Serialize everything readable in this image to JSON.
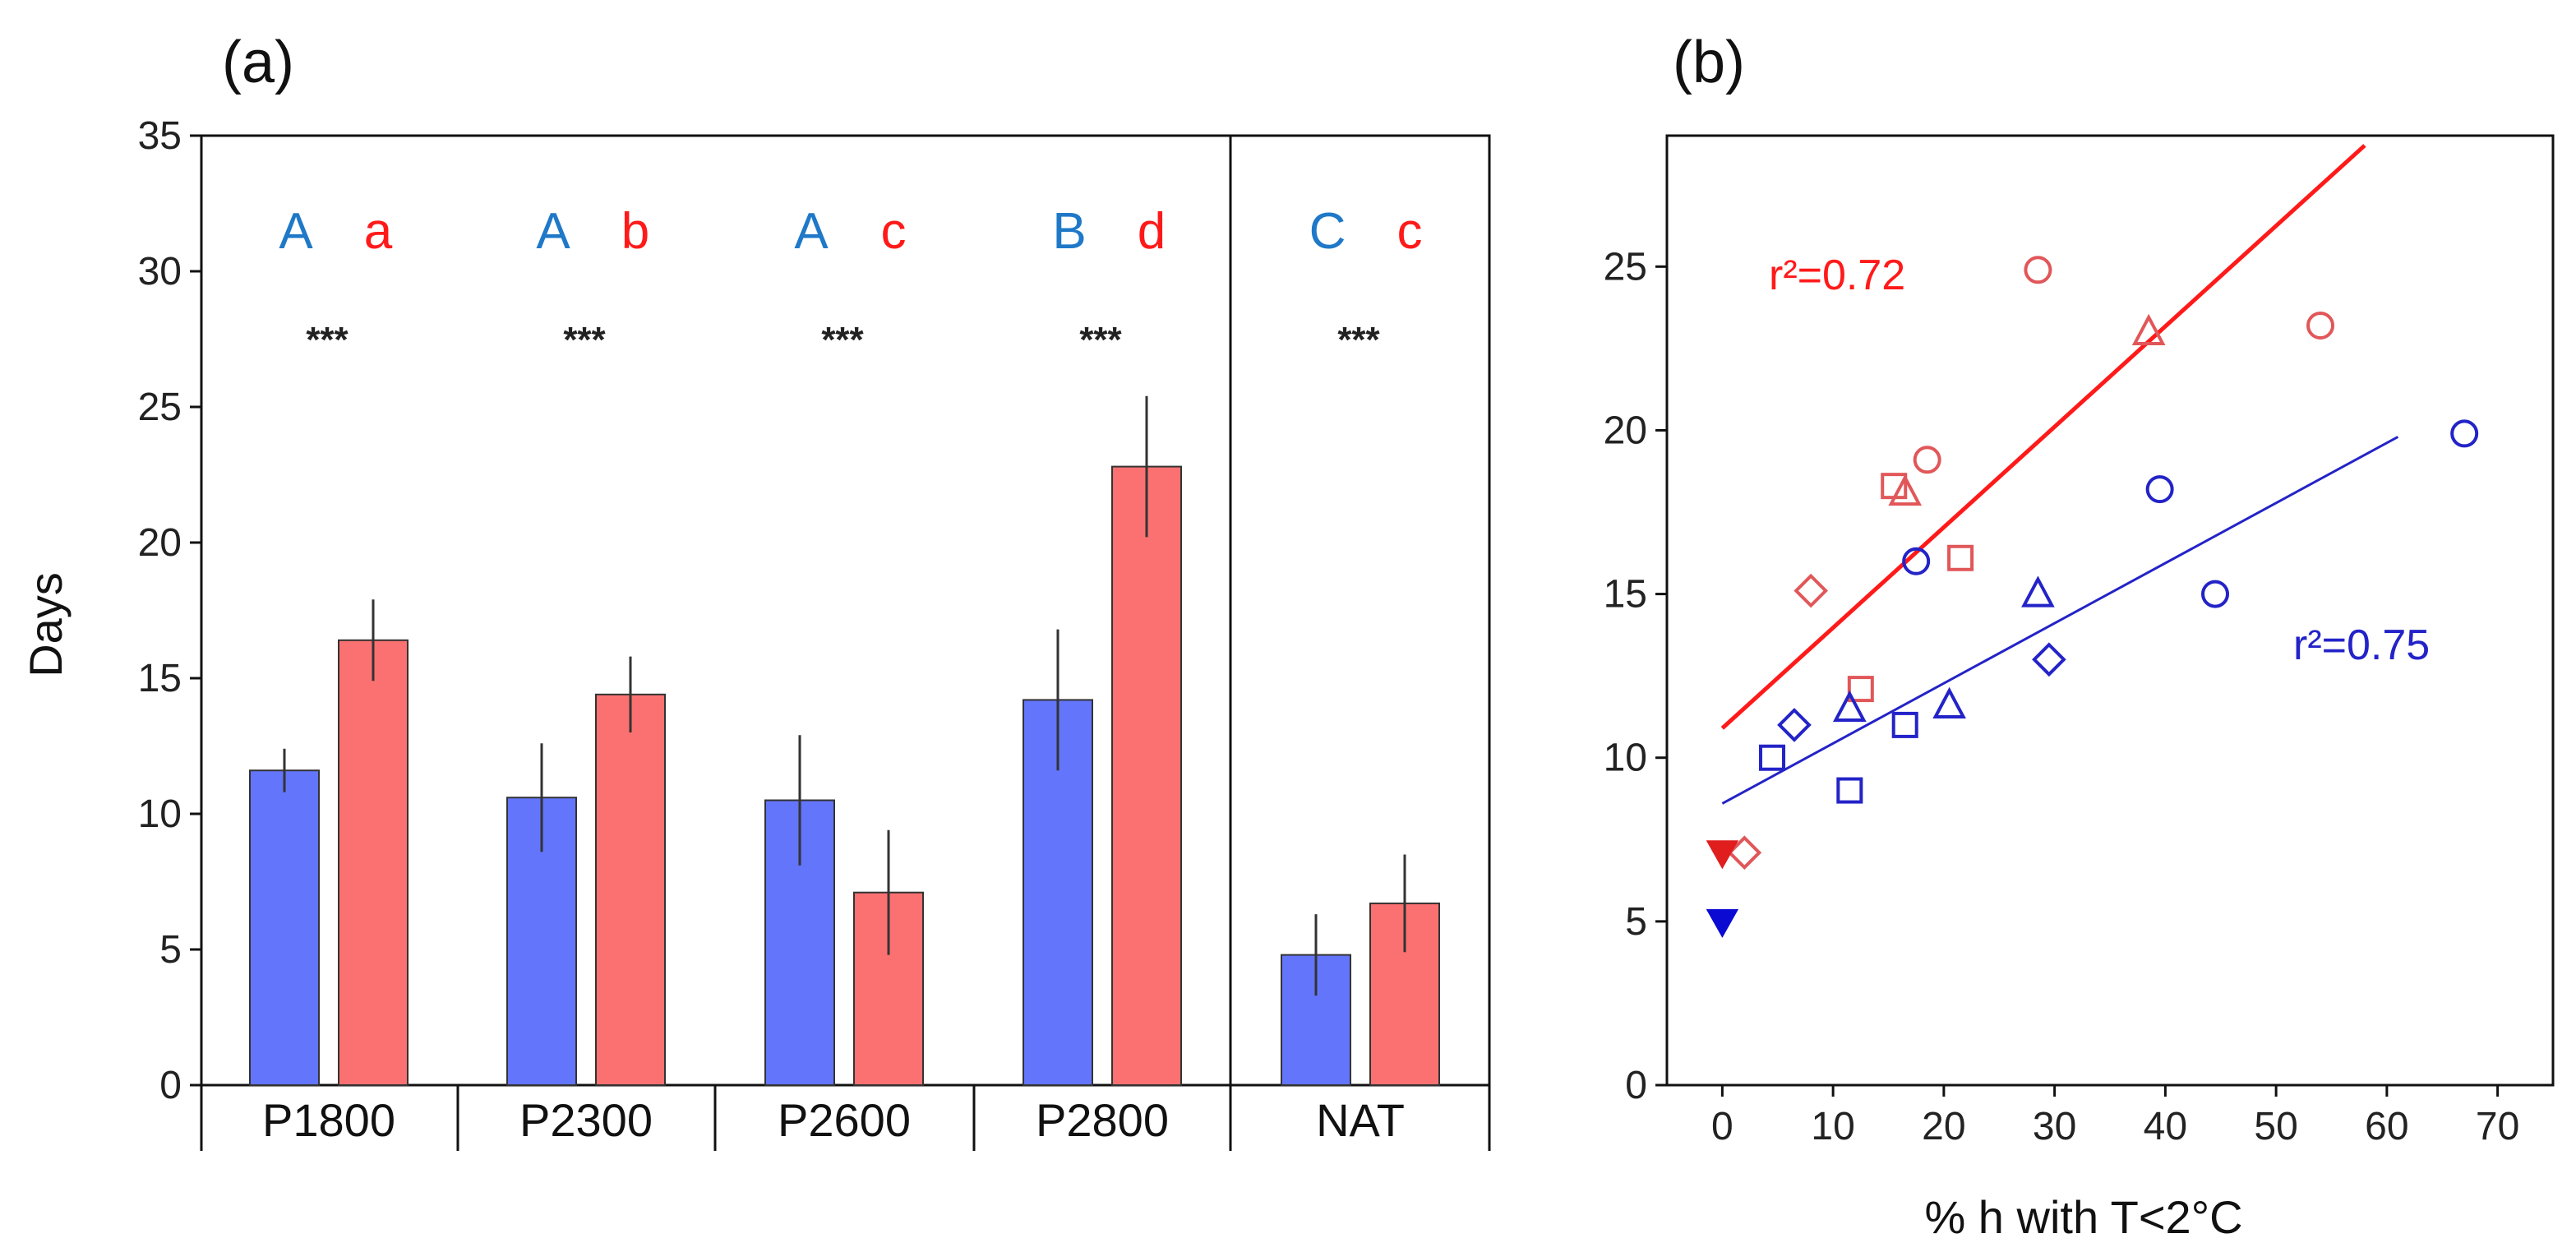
{
  "chart_data": [
    {
      "type": "bar",
      "panel_label": "(a)",
      "ylabel": "Days",
      "ylim": [
        0,
        35
      ],
      "yticks": [
        "0",
        "5",
        "10",
        "15",
        "20",
        "25",
        "30",
        "35"
      ],
      "categories": [
        "P1800",
        "P2300",
        "P2600",
        "P2800",
        "NAT"
      ],
      "series": [
        {
          "name": "blue",
          "color": "#6375fb",
          "values": [
            11.6,
            10.6,
            10.5,
            14.2,
            4.8
          ],
          "errors": [
            0.8,
            2.0,
            2.4,
            2.6,
            1.5
          ]
        },
        {
          "name": "red",
          "color": "#fb7171",
          "values": [
            16.4,
            14.4,
            7.1,
            22.8,
            6.7
          ],
          "errors": [
            1.5,
            1.4,
            2.3,
            2.6,
            1.8
          ]
        }
      ],
      "letters_blue": [
        "A",
        "A",
        "A",
        "B",
        "C"
      ],
      "letters_red": [
        "a",
        "b",
        "c",
        "d",
        "c"
      ],
      "significance": [
        "***",
        "***",
        "***",
        "***",
        "***"
      ],
      "blue_color": "#1f78c8",
      "red_color": "#ff1a1a"
    },
    {
      "type": "scatter",
      "panel_label": "(b)",
      "xlabel": "% h with T<2°C",
      "xlim": [
        -5,
        75
      ],
      "ylim": [
        0,
        29
      ],
      "xticks": [
        "0",
        "10",
        "20",
        "30",
        "40",
        "50",
        "60",
        "70"
      ],
      "yticks": [
        "0",
        "5",
        "10",
        "15",
        "20",
        "25"
      ],
      "series": [
        {
          "name": "red",
          "color": "#e15759",
          "points": [
            {
              "x": 28.5,
              "y": 24.9,
              "shape": "circle"
            },
            {
              "x": 54,
              "y": 23.2,
              "shape": "circle"
            },
            {
              "x": 18.5,
              "y": 19.1,
              "shape": "circle"
            },
            {
              "x": 38.5,
              "y": 23.0,
              "shape": "triangle"
            },
            {
              "x": 16.5,
              "y": 18.1,
              "shape": "triangle"
            },
            {
              "x": 15.5,
              "y": 18.3,
              "shape": "square"
            },
            {
              "x": 21.5,
              "y": 16.1,
              "shape": "square"
            },
            {
              "x": 12.5,
              "y": 12.1,
              "shape": "square"
            },
            {
              "x": 8,
              "y": 15.1,
              "shape": "diamond"
            },
            {
              "x": 2,
              "y": 7.1,
              "shape": "diamond"
            },
            {
              "x": 0,
              "y": 7.1,
              "shape": "filled-triangle-down"
            }
          ],
          "fit": {
            "x": [
              0,
              58
            ],
            "y": [
              10.9,
              28.7
            ]
          },
          "r2": "r²=0.72"
        },
        {
          "name": "blue",
          "color": "#2323c8",
          "points": [
            {
              "x": 67,
              "y": 19.9,
              "shape": "circle"
            },
            {
              "x": 39.5,
              "y": 18.2,
              "shape": "circle"
            },
            {
              "x": 44.5,
              "y": 15.0,
              "shape": "circle"
            },
            {
              "x": 17.5,
              "y": 16.0,
              "shape": "circle"
            },
            {
              "x": 28.5,
              "y": 15.0,
              "shape": "triangle"
            },
            {
              "x": 20.5,
              "y": 11.6,
              "shape": "triangle"
            },
            {
              "x": 11.5,
              "y": 11.5,
              "shape": "triangle"
            },
            {
              "x": 4.5,
              "y": 10.0,
              "shape": "square"
            },
            {
              "x": 11.5,
              "y": 9.0,
              "shape": "square"
            },
            {
              "x": 16.5,
              "y": 11.0,
              "shape": "square"
            },
            {
              "x": 6.5,
              "y": 11.0,
              "shape": "diamond"
            },
            {
              "x": 29.5,
              "y": 13.0,
              "shape": "diamond"
            },
            {
              "x": 0,
              "y": 5.0,
              "shape": "filled-triangle-down"
            }
          ],
          "fit": {
            "x": [
              0,
              61
            ],
            "y": [
              8.6,
              19.8
            ]
          },
          "r2": "r²=0.75"
        }
      ]
    }
  ]
}
